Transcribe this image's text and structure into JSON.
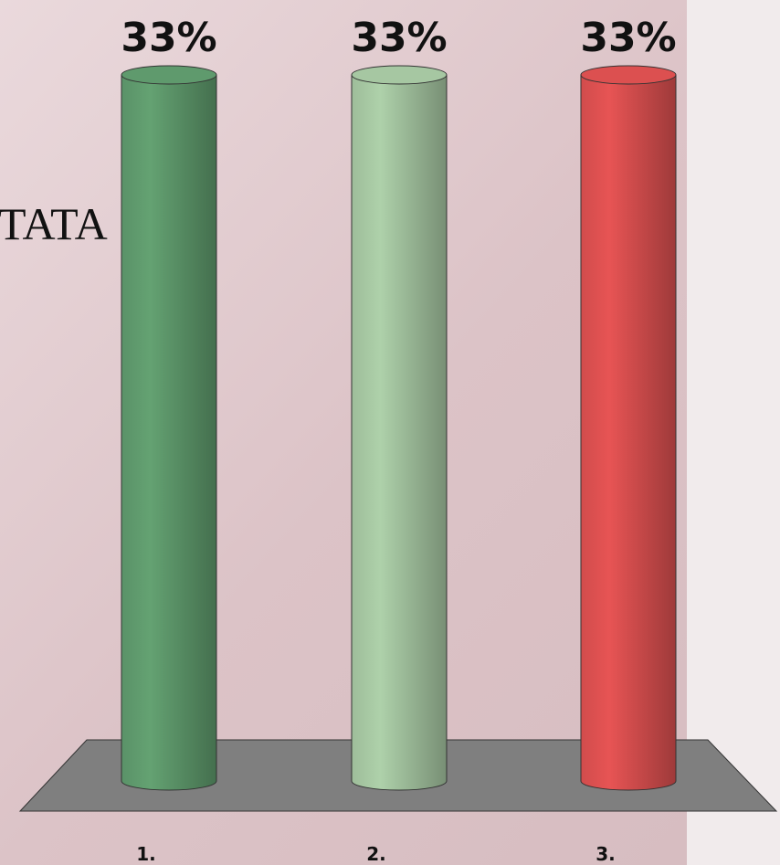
{
  "chart_data": {
    "type": "bar",
    "annotation": "TATA",
    "categories": [
      "1.",
      "2.",
      "3."
    ],
    "values": [
      33,
      33,
      33
    ],
    "value_labels": [
      "33%",
      "33%",
      "33%"
    ],
    "colors": [
      "#5f9a6d",
      "#a6c7a2",
      "#dc5050"
    ]
  }
}
